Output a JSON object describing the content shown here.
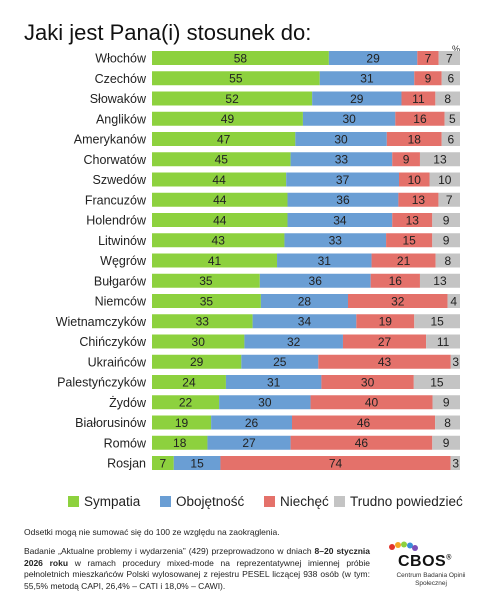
{
  "title": "Jaki jest Pana(i) stosunek do:",
  "percent_sign": "%",
  "legend": [
    {
      "label": "Sympatia",
      "color": "#8dd13e"
    },
    {
      "label": "Obojętność",
      "color": "#6a9ed4"
    },
    {
      "label": "Niechęć",
      "color": "#e4716a"
    },
    {
      "label": "Trudno powiedzieć",
      "color": "#c4c4c4"
    }
  ],
  "note_rounding": "Odsetki mogą nie sumować się do 100 ze względu na zaokrąglenia.",
  "note_method_a": "Badanie „Aktualne problemy i wydarzenia” (429) przeprowadzono w dniach ",
  "note_method_b": "8–20 stycznia 2026 roku",
  "note_method_c": " w ramach procedury mixed-mode na reprezentatywnej imiennej próbie pełnoletnich mieszkańców Polski wylosowanej z rejestru PESEL liczącej 938 osób (w tym: 55,5% metodą CAPI, 26,4% – CATI i 18,0% – CAWI).",
  "logo": {
    "name": "CBOS",
    "reg": "®",
    "subtitle": "Centrum Badania Opinii Społecznej"
  },
  "chart_data": {
    "type": "bar",
    "orientation": "horizontal",
    "stacked": true,
    "title": "Jaki jest Pana(i) stosunek do:",
    "categories": [
      "Włochów",
      "Czechów",
      "Słowaków",
      "Anglików",
      "Amerykanów",
      "Chorwatów",
      "Szwedów",
      "Francuzów",
      "Holendrów",
      "Litwinów",
      "Węgrów",
      "Bułgarów",
      "Niemców",
      "Wietnamczyków",
      "Chińczyków",
      "Ukraińców",
      "Palestyńczyków",
      "Żydów",
      "Białorusinów",
      "Romów",
      "Rosjan"
    ],
    "series": [
      {
        "name": "Sympatia",
        "color": "#8dd13e",
        "values": [
          58,
          55,
          52,
          49,
          47,
          45,
          44,
          44,
          44,
          43,
          41,
          35,
          35,
          33,
          30,
          29,
          24,
          22,
          19,
          18,
          7
        ]
      },
      {
        "name": "Obojętność",
        "color": "#6a9ed4",
        "values": [
          29,
          31,
          29,
          30,
          30,
          33,
          37,
          36,
          34,
          33,
          31,
          36,
          28,
          34,
          32,
          25,
          31,
          30,
          26,
          27,
          15
        ]
      },
      {
        "name": "Niechęć",
        "color": "#e4716a",
        "values": [
          7,
          9,
          11,
          16,
          18,
          9,
          10,
          13,
          13,
          15,
          21,
          16,
          32,
          19,
          27,
          43,
          30,
          40,
          46,
          46,
          74
        ]
      },
      {
        "name": "Trudno powiedzieć",
        "color": "#c4c4c4",
        "values": [
          7,
          6,
          8,
          5,
          6,
          13,
          10,
          7,
          9,
          9,
          8,
          13,
          4,
          15,
          11,
          3,
          15,
          9,
          8,
          9,
          3
        ]
      }
    ],
    "xlim": [
      0,
      100
    ],
    "legend_position": "bottom",
    "grid": false
  }
}
